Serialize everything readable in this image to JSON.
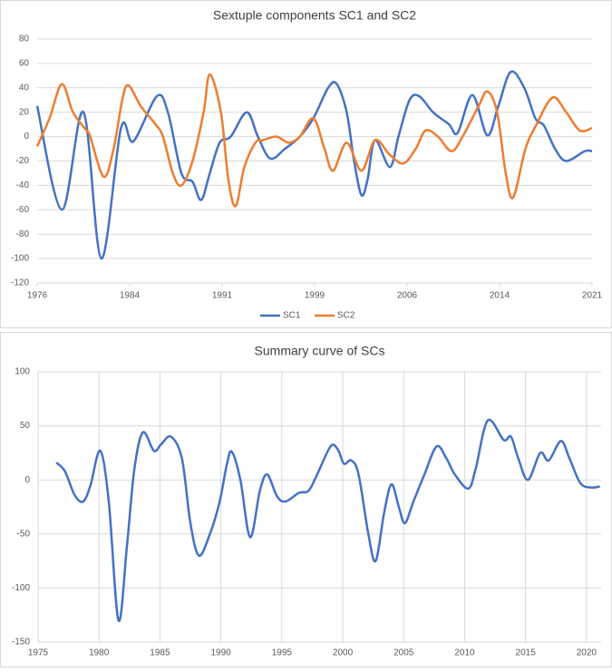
{
  "chart_data": [
    {
      "type": "line",
      "title": "Sextuple components SC1 and SC2",
      "xlim": [
        1976,
        2021
      ],
      "xticks": [
        1976,
        {
          "value": 1983.5,
          "label": "1984"
        },
        1991,
        {
          "value": 1998.5,
          "label": "1999"
        },
        2006,
        {
          "value": 2013.5,
          "label": "2014"
        },
        2021
      ],
      "ylim": [
        -120,
        80
      ],
      "yticks": [
        -120,
        -100,
        -80,
        -60,
        -40,
        -20,
        0,
        20,
        40,
        60,
        80
      ],
      "grid": true,
      "xgrid": false,
      "legend": "bottom",
      "series": [
        {
          "name": "SC1",
          "color": "#4472c4",
          "x": [
            1976.0,
            1978.0,
            1979.75,
            1981.2,
            1982.8,
            1983.8,
            1985.7,
            1986.6,
            1987.7,
            1988.6,
            1989.3,
            1990.0,
            1990.8,
            1991.7,
            1993.0,
            1993.9,
            1994.9,
            1996.1,
            1997.3,
            1998.4,
            1999.6,
            2000.3,
            2001.1,
            2001.7,
            2002.3,
            2002.8,
            2003.4,
            2004.6,
            2005.3,
            2006.2,
            2007.0,
            2008.1,
            2009.4,
            2010.1,
            2011.3,
            2012.5,
            2013.4,
            2014.4,
            2015.5,
            2016.4,
            2017.1,
            2018.0,
            2018.9,
            2020.4,
            2021.0
          ],
          "values": [
            25,
            -60,
            20,
            -100,
            7,
            -4,
            33,
            20,
            -30,
            -37,
            -52,
            -30,
            -5,
            0,
            20,
            0,
            -18,
            -10,
            0,
            15,
            40,
            43,
            20,
            -20,
            -48,
            -35,
            -3,
            -25,
            0,
            30,
            33,
            20,
            10,
            3,
            34,
            1,
            25,
            53,
            40,
            15,
            9,
            -10,
            -20,
            -12,
            -12
          ]
        },
        {
          "name": "SC2",
          "color": "#ed7d31",
          "x": [
            1976.0,
            1977.0,
            1978.0,
            1978.9,
            1980.0,
            1980.3,
            1981.4,
            1982.2,
            1982.9,
            1983.4,
            1984.4,
            1985.6,
            1986.2,
            1987.0,
            1987.7,
            1988.6,
            1989.5,
            1990.0,
            1990.9,
            1991.5,
            1992.1,
            1992.8,
            1993.7,
            1994.3,
            1995.4,
            1996.4,
            1997.3,
            1998.4,
            1999.3,
            2000.0,
            2001.1,
            2002.3,
            2003.4,
            2004.6,
            2005.7,
            2006.7,
            2007.5,
            2008.5,
            2009.6,
            2010.5,
            2011.8,
            2012.5,
            2013.3,
            2014.0,
            2014.6,
            2015.6,
            2016.5,
            2017.8,
            2018.9,
            2020.0,
            2021.0
          ],
          "values": [
            -8,
            15,
            43,
            20,
            5,
            0,
            -33,
            -10,
            30,
            42,
            25,
            10,
            0,
            -30,
            -40,
            -20,
            20,
            51,
            20,
            -35,
            -57,
            -25,
            -5,
            -3,
            0,
            -5,
            0,
            15,
            -10,
            -28,
            -5,
            -28,
            -3,
            -15,
            -22,
            -10,
            5,
            0,
            -12,
            0,
            25,
            37,
            20,
            -30,
            -50,
            -10,
            10,
            32,
            20,
            5,
            7
          ]
        }
      ]
    },
    {
      "type": "line",
      "title": "Summary curve of SCs",
      "xlim": [
        1975,
        2021.2
      ],
      "xticks": [
        1975,
        1980,
        1985,
        1990,
        1995,
        2000,
        2005,
        2010,
        2015,
        2020
      ],
      "ylim": [
        -150,
        100
      ],
      "yticks": [
        -150,
        -100,
        -50,
        0,
        50,
        100
      ],
      "grid": true,
      "xgrid": true,
      "series": [
        {
          "color": "#4472c4",
          "x": [
            1976.5,
            1977.2,
            1978.0,
            1978.7,
            1979.3,
            1980.1,
            1980.8,
            1981.6,
            1982.3,
            1982.9,
            1983.6,
            1984.5,
            1985.1,
            1985.9,
            1986.8,
            1987.5,
            1988.2,
            1989.1,
            1989.9,
            1990.5,
            1990.9,
            1991.6,
            1992.4,
            1993.2,
            1993.8,
            1994.6,
            1995.3,
            1996.4,
            1997.2,
            1997.9,
            1999.0,
            1999.6,
            2000.1,
            2000.7,
            2001.3,
            2002.1,
            2002.7,
            2003.4,
            2004.0,
            2004.6,
            2005.1,
            2005.8,
            2006.7,
            2007.7,
            2008.5,
            2009.2,
            2010.3,
            2010.9,
            2011.9,
            2013.2,
            2013.8,
            2014.4,
            2015.2,
            2016.2,
            2016.9,
            2017.9,
            2018.6,
            2019.5,
            2020.4,
            2021.1
          ],
          "values": [
            16,
            8,
            -14,
            -20,
            -5,
            27,
            -20,
            -130,
            -60,
            10,
            44,
            27,
            33,
            40,
            20,
            -40,
            -70,
            -50,
            -20,
            15,
            26,
            0,
            -53,
            -10,
            5,
            -15,
            -20,
            -12,
            -10,
            5,
            31,
            28,
            15,
            18,
            5,
            -50,
            -75,
            -30,
            -4,
            -25,
            -40,
            -20,
            5,
            31,
            20,
            5,
            -8,
            10,
            55,
            37,
            40,
            20,
            0,
            25,
            18,
            36,
            20,
            -3,
            -7,
            -6
          ]
        }
      ]
    }
  ]
}
